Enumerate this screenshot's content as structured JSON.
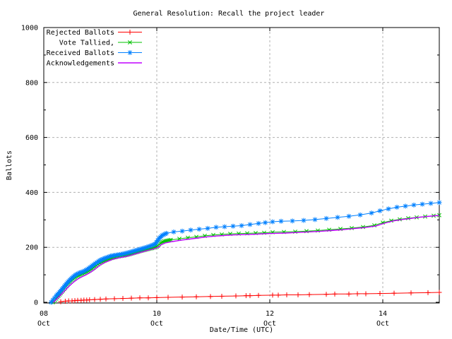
{
  "chart_data": {
    "type": "line",
    "title": "General Resolution: Recall the project leader",
    "xlabel": "Date/Time (UTC)",
    "ylabel": "Ballots",
    "grid": true,
    "legend_position": "top-left",
    "x_axis": {
      "unit": "days since Oct 08 00:00 UTC",
      "range_days": [
        0,
        7
      ],
      "ticks": [
        {
          "t": 0,
          "day": "08",
          "month": "Oct"
        },
        {
          "t": 2,
          "day": "10",
          "month": "Oct"
        },
        {
          "t": 4,
          "day": "12",
          "month": "Oct"
        },
        {
          "t": 6,
          "day": "14",
          "month": "Oct"
        }
      ]
    },
    "y_axis": {
      "range": [
        0,
        1000
      ],
      "major_ticks": [
        0,
        200,
        400,
        600,
        800,
        1000
      ],
      "minor_ticks": [
        100,
        300,
        500,
        700,
        900
      ]
    },
    "series": [
      {
        "name": "Rejected Ballots",
        "color": "#ff0000",
        "marker": "plus",
        "points": [
          [
            0.3,
            2
          ],
          [
            0.38,
            4
          ],
          [
            0.44,
            5
          ],
          [
            0.5,
            5
          ],
          [
            0.55,
            6
          ],
          [
            0.6,
            7
          ],
          [
            0.66,
            7
          ],
          [
            0.71,
            8
          ],
          [
            0.76,
            8
          ],
          [
            0.81,
            9
          ],
          [
            0.9,
            10
          ],
          [
            1.0,
            11
          ],
          [
            1.1,
            12
          ],
          [
            1.25,
            13
          ],
          [
            1.4,
            14
          ],
          [
            1.55,
            15
          ],
          [
            1.7,
            16
          ],
          [
            1.85,
            16
          ],
          [
            2.0,
            17
          ],
          [
            2.2,
            18
          ],
          [
            2.45,
            19
          ],
          [
            2.7,
            20
          ],
          [
            2.95,
            21
          ],
          [
            3.15,
            22
          ],
          [
            3.4,
            23
          ],
          [
            3.58,
            24
          ],
          [
            3.65,
            24
          ],
          [
            3.8,
            25
          ],
          [
            4.05,
            26
          ],
          [
            4.15,
            26
          ],
          [
            4.3,
            27
          ],
          [
            4.5,
            27
          ],
          [
            4.7,
            28
          ],
          [
            5.0,
            29
          ],
          [
            5.15,
            30
          ],
          [
            5.4,
            30
          ],
          [
            5.55,
            31
          ],
          [
            5.7,
            31
          ],
          [
            5.95,
            32
          ],
          [
            6.2,
            33
          ],
          [
            6.5,
            34
          ],
          [
            6.8,
            35
          ],
          [
            7.0,
            36
          ]
        ]
      },
      {
        "name": "Vote Tallied,",
        "color": "#00c000",
        "marker": "cross",
        "points": [
          [
            0.16,
            0
          ],
          [
            0.2,
            8
          ],
          [
            0.24,
            18
          ],
          [
            0.28,
            28
          ],
          [
            0.32,
            38
          ],
          [
            0.36,
            48
          ],
          [
            0.4,
            58
          ],
          [
            0.44,
            67
          ],
          [
            0.48,
            75
          ],
          [
            0.52,
            83
          ],
          [
            0.56,
            90
          ],
          [
            0.61,
            96
          ],
          [
            0.66,
            101
          ],
          [
            0.72,
            106
          ],
          [
            0.79,
            113
          ],
          [
            0.86,
            122
          ],
          [
            0.93,
            133
          ],
          [
            0.99,
            142
          ],
          [
            1.05,
            149
          ],
          [
            1.12,
            155
          ],
          [
            1.2,
            161
          ],
          [
            1.3,
            166
          ],
          [
            1.42,
            170
          ],
          [
            1.52,
            175
          ],
          [
            1.62,
            181
          ],
          [
            1.72,
            187
          ],
          [
            1.82,
            192
          ],
          [
            1.92,
            197
          ],
          [
            2.0,
            202
          ],
          [
            2.06,
            215
          ],
          [
            2.13,
            222
          ],
          [
            2.25,
            227
          ],
          [
            2.4,
            231
          ],
          [
            2.55,
            235
          ],
          [
            2.7,
            238
          ],
          [
            2.85,
            242
          ],
          [
            3.0,
            245
          ],
          [
            3.15,
            247
          ],
          [
            3.3,
            249
          ],
          [
            3.45,
            250
          ],
          [
            3.6,
            251
          ],
          [
            3.75,
            252
          ],
          [
            3.9,
            253
          ],
          [
            4.05,
            255
          ],
          [
            4.25,
            256
          ],
          [
            4.45,
            257
          ],
          [
            4.65,
            259
          ],
          [
            4.85,
            261
          ],
          [
            5.05,
            264
          ],
          [
            5.25,
            267
          ],
          [
            5.45,
            270
          ],
          [
            5.65,
            274
          ],
          [
            5.85,
            280
          ],
          [
            6.0,
            290
          ],
          [
            6.15,
            297
          ],
          [
            6.3,
            302
          ],
          [
            6.45,
            306
          ],
          [
            6.6,
            309
          ],
          [
            6.75,
            312
          ],
          [
            6.9,
            315
          ],
          [
            7.0,
            317
          ]
        ]
      },
      {
        "name": "Received Ballots",
        "color": "#0080ff",
        "marker": "asterisk",
        "points": [
          [
            0.13,
            0
          ],
          [
            0.16,
            8
          ],
          [
            0.19,
            16
          ],
          [
            0.22,
            24
          ],
          [
            0.26,
            32
          ],
          [
            0.3,
            42
          ],
          [
            0.34,
            52
          ],
          [
            0.38,
            62
          ],
          [
            0.42,
            72
          ],
          [
            0.46,
            81
          ],
          [
            0.5,
            89
          ],
          [
            0.54,
            96
          ],
          [
            0.58,
            102
          ],
          [
            0.63,
            107
          ],
          [
            0.7,
            112
          ],
          [
            0.77,
            120
          ],
          [
            0.84,
            130
          ],
          [
            0.91,
            141
          ],
          [
            0.97,
            149
          ],
          [
            1.03,
            156
          ],
          [
            1.1,
            162
          ],
          [
            1.18,
            168
          ],
          [
            1.28,
            172
          ],
          [
            1.4,
            176
          ],
          [
            1.5,
            181
          ],
          [
            1.6,
            187
          ],
          [
            1.7,
            193
          ],
          [
            1.8,
            199
          ],
          [
            1.9,
            206
          ],
          [
            1.97,
            212
          ],
          [
            2.04,
            232
          ],
          [
            2.1,
            244
          ],
          [
            2.17,
            251
          ],
          [
            2.3,
            256
          ],
          [
            2.45,
            259
          ],
          [
            2.6,
            263
          ],
          [
            2.75,
            266
          ],
          [
            2.9,
            269
          ],
          [
            3.05,
            273
          ],
          [
            3.2,
            275
          ],
          [
            3.35,
            277
          ],
          [
            3.5,
            279
          ],
          [
            3.65,
            283
          ],
          [
            3.8,
            287
          ],
          [
            3.92,
            290
          ],
          [
            4.05,
            293
          ],
          [
            4.2,
            295
          ],
          [
            4.4,
            296
          ],
          [
            4.6,
            298
          ],
          [
            4.8,
            301
          ],
          [
            5.0,
            305
          ],
          [
            5.2,
            309
          ],
          [
            5.4,
            313
          ],
          [
            5.6,
            318
          ],
          [
            5.8,
            325
          ],
          [
            5.95,
            333
          ],
          [
            6.1,
            340
          ],
          [
            6.25,
            346
          ],
          [
            6.4,
            350
          ],
          [
            6.55,
            354
          ],
          [
            6.7,
            357
          ],
          [
            6.85,
            360
          ],
          [
            7.0,
            363
          ]
        ]
      },
      {
        "name": "Acknowledgements",
        "color": "#c000ff",
        "marker": "none",
        "points": [
          [
            0.17,
            0
          ],
          [
            0.22,
            10
          ],
          [
            0.27,
            20
          ],
          [
            0.32,
            31
          ],
          [
            0.37,
            42
          ],
          [
            0.42,
            53
          ],
          [
            0.47,
            63
          ],
          [
            0.52,
            72
          ],
          [
            0.57,
            80
          ],
          [
            0.62,
            87
          ],
          [
            0.68,
            93
          ],
          [
            0.74,
            99
          ],
          [
            0.81,
            107
          ],
          [
            0.88,
            117
          ],
          [
            0.95,
            128
          ],
          [
            1.01,
            137
          ],
          [
            1.08,
            145
          ],
          [
            1.15,
            151
          ],
          [
            1.23,
            157
          ],
          [
            1.33,
            162
          ],
          [
            1.44,
            166
          ],
          [
            1.54,
            171
          ],
          [
            1.64,
            177
          ],
          [
            1.74,
            183
          ],
          [
            1.84,
            189
          ],
          [
            1.94,
            194
          ],
          [
            2.02,
            200
          ],
          [
            2.08,
            210
          ],
          [
            2.15,
            216
          ],
          [
            2.28,
            221
          ],
          [
            2.43,
            226
          ],
          [
            2.58,
            230
          ],
          [
            2.73,
            234
          ],
          [
            2.88,
            238
          ],
          [
            3.03,
            241
          ],
          [
            3.18,
            243
          ],
          [
            3.33,
            245
          ],
          [
            3.48,
            246
          ],
          [
            3.63,
            247
          ],
          [
            3.78,
            248
          ],
          [
            3.93,
            250
          ],
          [
            4.08,
            251
          ],
          [
            4.28,
            252
          ],
          [
            4.48,
            254
          ],
          [
            4.68,
            256
          ],
          [
            4.88,
            258
          ],
          [
            5.08,
            261
          ],
          [
            5.28,
            264
          ],
          [
            5.48,
            268
          ],
          [
            5.68,
            272
          ],
          [
            5.88,
            278
          ],
          [
            6.03,
            288
          ],
          [
            6.18,
            296
          ],
          [
            6.33,
            301
          ],
          [
            6.48,
            305
          ],
          [
            6.63,
            309
          ],
          [
            6.78,
            312
          ],
          [
            6.93,
            315
          ],
          [
            7.0,
            316
          ]
        ]
      }
    ]
  },
  "colors": {
    "background": "#ffffff",
    "axis": "#000000",
    "grid": "#b0b0b0",
    "text": "#000000"
  }
}
